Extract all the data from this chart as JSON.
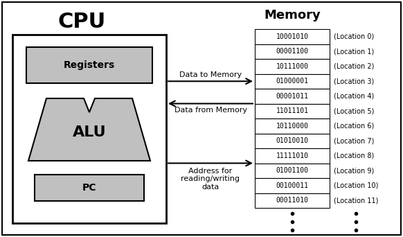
{
  "title_cpu": "CPU",
  "title_memory": "Memory",
  "memory_values": [
    "10001010",
    "00001100",
    "10111000",
    "01000001",
    "00001011",
    "11011101",
    "10110000",
    "01010010",
    "11111010",
    "01001100",
    "00100011",
    "00011010"
  ],
  "memory_locations": [
    "(Location 0)",
    "(Location 1)",
    "(Location 2)",
    "(Location 3)",
    "(Location 4)",
    "(Location 5)",
    "(Location 6)",
    "(Location 7)",
    "(Location 8)",
    "(Location 9)",
    "(Location 10)",
    "(Location 11)"
  ],
  "label_registers": "Registers",
  "label_alu": "ALU",
  "label_pc": "PC",
  "arrow1_label": "Data to Memory",
  "arrow2_label": "Data from Memory",
  "arrow3_label": "Address for\nreading/writing\ndata",
  "bg_color": "#ffffff",
  "box_color": "#c0c0c0",
  "border_color": "#000000",
  "text_color": "#000000",
  "figsize": [
    5.82,
    3.42
  ],
  "dpi": 100
}
